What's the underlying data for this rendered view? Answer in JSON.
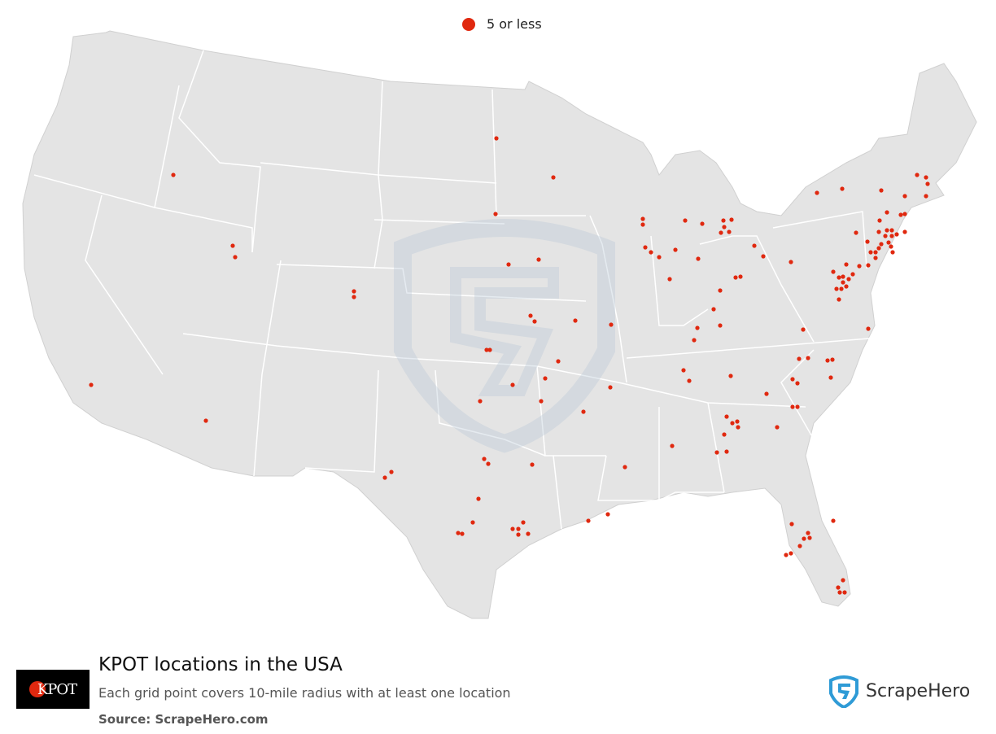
{
  "legend": {
    "label": "5 or less",
    "dot_color": "#e0280f"
  },
  "title": "KPOT locations in the USA",
  "subtitle": "Each grid point covers 10-mile radius with at least one location",
  "source": "Source: ScrapeHero.com",
  "brand": {
    "name": "ScrapeHero",
    "color": "#2f9bd6"
  },
  "logo": {
    "text": "KPOT",
    "accent": "#e0280f"
  },
  "map": {
    "land_color": "#e4e4e4",
    "border_color": "#ffffff",
    "watermark": "shield"
  }
}
